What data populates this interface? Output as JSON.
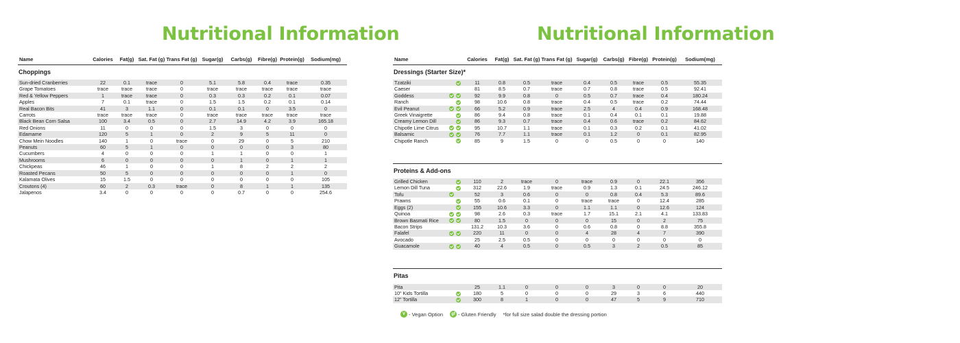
{
  "accent_color": "#7cc242",
  "titles": {
    "left": "Nutritional Information",
    "right": "Nutritional Information"
  },
  "columns": [
    "Name",
    "Calories",
    "Fat(g)",
    "Sat. Fat (g)",
    "Trans Fat (g)",
    "Sugar(g)",
    "Carbs(g)",
    "Fibre(g)",
    "Protein(g)",
    "Sodium(mg)"
  ],
  "left_sections": [
    {
      "title": "Choppings",
      "rows": [
        {
          "name": "Sun-dried Cranberries",
          "v": [
            "22",
            "0.1",
            "trace",
            "0",
            "5.1",
            "5.8",
            "0.4",
            "trace",
            "0.35"
          ]
        },
        {
          "name": "Grape Tomatoes",
          "v": [
            "trace",
            "trace",
            "trace",
            "0",
            "trace",
            "trace",
            "trace",
            "trace",
            "trace"
          ]
        },
        {
          "name": "Red & Yellow Peppers",
          "v": [
            "1",
            "trace",
            "trace",
            "0",
            "0.3",
            "0.3",
            "0.2",
            "0.1",
            "0.07"
          ]
        },
        {
          "name": "Apples",
          "v": [
            "7",
            "0.1",
            "trace",
            "0",
            "1.5",
            "1.5",
            "0.2",
            "0.1",
            "0.14"
          ]
        },
        {
          "name": "Real Bacon Bits",
          "v": [
            "41",
            "3",
            "1.1",
            "0",
            "0.1",
            "0.1",
            "0",
            "3.5",
            "0"
          ]
        },
        {
          "name": "Carrots",
          "v": [
            "trace",
            "trace",
            "trace",
            "0",
            "trace",
            "trace",
            "trace",
            "trace",
            "trace"
          ]
        },
        {
          "name": "Black Bean Corn Salsa",
          "v": [
            "100",
            "3.4",
            "0.5",
            "0",
            "2.7",
            "14.9",
            "4.2",
            "3.9",
            "165.18"
          ]
        },
        {
          "name": "Red Onions",
          "v": [
            "11",
            "0",
            "0",
            "0",
            "1.5",
            "3",
            "0",
            "0",
            "0"
          ]
        },
        {
          "name": "Edamame",
          "v": [
            "120",
            "5",
            "1",
            "0",
            "2",
            "9",
            "5",
            "11",
            "0"
          ]
        },
        {
          "name": "Chow Mein Noodles",
          "v": [
            "140",
            "1",
            "0",
            "trace",
            "0",
            "29",
            "0",
            "5",
            "210"
          ]
        },
        {
          "name": "Peanuts",
          "v": [
            "60",
            "5",
            "1",
            "0",
            "0",
            "0",
            "0",
            "3",
            "80"
          ]
        },
        {
          "name": "Cucumbers",
          "v": [
            "4",
            "0",
            "0",
            "0",
            "1",
            "1",
            "0",
            "0",
            "1"
          ]
        },
        {
          "name": "Mushrooms",
          "v": [
            "6",
            "0",
            "0",
            "0",
            "0",
            "1",
            "0",
            "1",
            "1"
          ]
        },
        {
          "name": "Chickpeas",
          "v": [
            "46",
            "1",
            "0",
            "0",
            "1",
            "8",
            "2",
            "2",
            "2"
          ]
        },
        {
          "name": "Roasted Pecans",
          "v": [
            "50",
            "5",
            "0",
            "0",
            "0",
            "0",
            "0",
            "1",
            "0"
          ]
        },
        {
          "name": "Kalamata Olives",
          "v": [
            "15",
            "1.5",
            "0",
            "0",
            "0",
            "0",
            "0",
            "0",
            "105"
          ]
        },
        {
          "name": "Croutons (4)",
          "v": [
            "60",
            "2",
            "0.3",
            "trace",
            "0",
            "8",
            "1",
            "1",
            "135"
          ]
        },
        {
          "name": "Jalapenos",
          "v": [
            "3.4",
            "0",
            "0",
            "0",
            "0",
            "0.7",
            "0",
            "0",
            "254.6"
          ]
        }
      ]
    }
  ],
  "right_sections": [
    {
      "title": "Dressings (Starter Size)*",
      "rows": [
        {
          "name": "Tzatziki",
          "vegan": false,
          "gf": true,
          "v": [
            "11",
            "0.8",
            "0.5",
            "trace",
            "0.4",
            "0.5",
            "trace",
            "0.5",
            "55.35"
          ]
        },
        {
          "name": "Caeser",
          "vegan": false,
          "gf": false,
          "v": [
            "81",
            "8.5",
            "0.7",
            "trace",
            "0.7",
            "0.8",
            "trace",
            "0.5",
            "92.41"
          ]
        },
        {
          "name": "Goddess",
          "vegan": true,
          "gf": true,
          "v": [
            "92",
            "9.9",
            "0.8",
            "0",
            "0.5",
            "0.7",
            "trace",
            "0.4",
            "180.24"
          ]
        },
        {
          "name": "Ranch",
          "vegan": false,
          "gf": true,
          "v": [
            "98",
            "10.6",
            "0.8",
            "trace",
            "0.4",
            "0.5",
            "trace",
            "0.2",
            "74.44"
          ]
        },
        {
          "name": "Evil Peanut",
          "vegan": true,
          "gf": true,
          "v": [
            "66",
            "5.2",
            "0.9",
            "trace",
            "2.5",
            "4",
            "0.4",
            "0.9",
            "168.48"
          ]
        },
        {
          "name": "Greek Vinaigrette",
          "vegan": false,
          "gf": true,
          "v": [
            "86",
            "9.4",
            "0.8",
            "trace",
            "0.1",
            "0.4",
            "0.1",
            "0.1",
            "19.88"
          ]
        },
        {
          "name": "Creamy Lemon Dill",
          "vegan": false,
          "gf": true,
          "v": [
            "86",
            "9.3",
            "0.7",
            "trace",
            "0.4",
            "0.6",
            "trace",
            "0.2",
            "84.62"
          ]
        },
        {
          "name": "Chipotle Lime Citrus",
          "vegan": true,
          "gf": true,
          "v": [
            "95",
            "10.7",
            "1.1",
            "trace",
            "0.1",
            "0.3",
            "0.2",
            "0.1",
            "41.02"
          ]
        },
        {
          "name": "Balsamic",
          "vegan": true,
          "gf": true,
          "v": [
            "76",
            "7.7",
            "1.1",
            "trace",
            "0.1",
            "1.2",
            "0",
            "0.1",
            "82.95"
          ]
        },
        {
          "name": "Chipotle Ranch",
          "vegan": false,
          "gf": true,
          "v": [
            "85",
            "9",
            "1.5",
            "0",
            "0",
            "0.5",
            "0",
            "0",
            "140"
          ]
        }
      ]
    },
    {
      "title": "Proteins & Add-ons",
      "rows": [
        {
          "name": "Grilled Chicken",
          "vegan": false,
          "gf": true,
          "v": [
            "110",
            "2",
            "trace",
            "0",
            "trace",
            "0.9",
            "0",
            "22.1",
            "356"
          ]
        },
        {
          "name": "Lemon Dill Tuna",
          "vegan": false,
          "gf": true,
          "v": [
            "312",
            "22.6",
            "1.9",
            "trace",
            "0.9",
            "1.3",
            "0.1",
            "24.5",
            "246.12"
          ]
        },
        {
          "name": "Tofu",
          "vegan": true,
          "gf": false,
          "v": [
            "52",
            "3",
            "0.6",
            "0",
            "0",
            "0.8",
            "0.4",
            "5.3",
            "89.6"
          ]
        },
        {
          "name": "Prawns",
          "vegan": false,
          "gf": true,
          "v": [
            "55",
            "0.6",
            "0.1",
            "0",
            "trace",
            "trace",
            "0",
            "12.4",
            "285"
          ]
        },
        {
          "name": "Eggs (2)",
          "vegan": false,
          "gf": true,
          "v": [
            "155",
            "10.6",
            "3.3",
            "0",
            "1.1",
            "1.1",
            "0",
            "12.6",
            "124"
          ]
        },
        {
          "name": "Quinoa",
          "vegan": true,
          "gf": true,
          "v": [
            "98",
            "2.6",
            "0.3",
            "trace",
            "1.7",
            "15.1",
            "2.1",
            "4.1",
            "133.83"
          ]
        },
        {
          "name": "Brown Basmati Rice",
          "vegan": true,
          "gf": true,
          "v": [
            "80",
            "1.5",
            "0",
            "0",
            "0",
            "15",
            "0",
            "2",
            "75"
          ]
        },
        {
          "name": "Bacon Strips",
          "vegan": false,
          "gf": false,
          "v": [
            "131.2",
            "10.3",
            "3.6",
            "0",
            "0.6",
            "0.8",
            "0",
            "8.8",
            "355.8"
          ]
        },
        {
          "name": "Falafel",
          "vegan": true,
          "gf": true,
          "v": [
            "220",
            "11",
            "0",
            "0",
            "4",
            "28",
            "4",
            "7",
            "390"
          ]
        },
        {
          "name": "Avocado",
          "vegan": false,
          "gf": false,
          "v": [
            "25",
            "2.5",
            "0.5",
            "0",
            "0",
            "0",
            "0",
            "0",
            "0"
          ]
        },
        {
          "name": "Guacamole",
          "vegan": true,
          "gf": true,
          "v": [
            "40",
            "4",
            "0.5",
            "0",
            "0.5",
            "3",
            "2",
            "0.5",
            "85"
          ]
        }
      ]
    },
    {
      "title": "Pitas",
      "rows": [
        {
          "name": "Pita",
          "vegan": false,
          "gf": false,
          "v": [
            "25",
            "1.1",
            "0",
            "0",
            "0",
            "3",
            "0",
            "0",
            "20"
          ]
        },
        {
          "name": "10\" Kids Tortilla",
          "vegan": false,
          "gf": true,
          "v": [
            "180",
            "5",
            "0",
            "0",
            "0",
            "29",
            "3",
            "6",
            "440"
          ]
        },
        {
          "name": "12\" Tortilla",
          "vegan": false,
          "gf": true,
          "v": [
            "300",
            "8",
            "1",
            "0",
            "0",
            "47",
            "5",
            "9",
            "710"
          ]
        }
      ]
    }
  ],
  "legend": {
    "vegan_symbol": "V",
    "vegan_label": "- Vegan Option",
    "gf_symbol": "gf",
    "gf_label": "- Gluten Friendly",
    "footnote": "*for full size salad double the dressing portion"
  }
}
